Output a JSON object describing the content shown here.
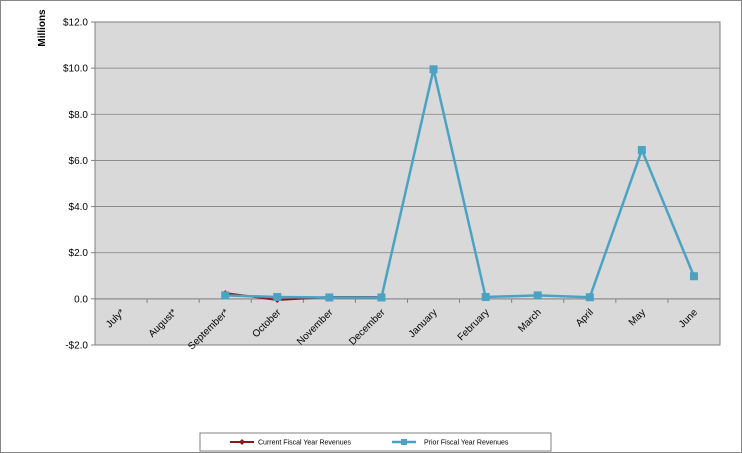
{
  "chart_data": {
    "type": "line",
    "categories": [
      "July*",
      "August*",
      "September*",
      "October",
      "November",
      "December",
      "January",
      "February",
      "March",
      "April",
      "May",
      "June"
    ],
    "series": [
      {
        "name": "Current Fiscal Year Revenues",
        "color": "#8B1A1A",
        "values": [
          null,
          null,
          0.25,
          -0.05,
          0.08,
          0.08,
          null,
          null,
          null,
          null,
          null,
          null
        ]
      },
      {
        "name": "Prior Fiscal Year Revenues",
        "color": "#4BA3C3",
        "values": [
          null,
          null,
          0.15,
          0.08,
          0.06,
          0.06,
          9.95,
          0.08,
          0.15,
          0.07,
          6.45,
          0.98
        ]
      }
    ],
    "ylabel": "Millions",
    "ylim": [
      -2,
      12
    ],
    "yticks": [
      -2,
      0,
      2,
      4,
      6,
      8,
      10,
      12
    ],
    "ytick_labels": [
      "-$2.0",
      "0.0",
      "$2.0",
      "$4.0",
      "$6.0",
      "$8.0",
      "$10.0",
      "$12.0"
    ],
    "grid": true,
    "plot_background": "#D9D9D9",
    "legend_position": "bottom-center"
  }
}
